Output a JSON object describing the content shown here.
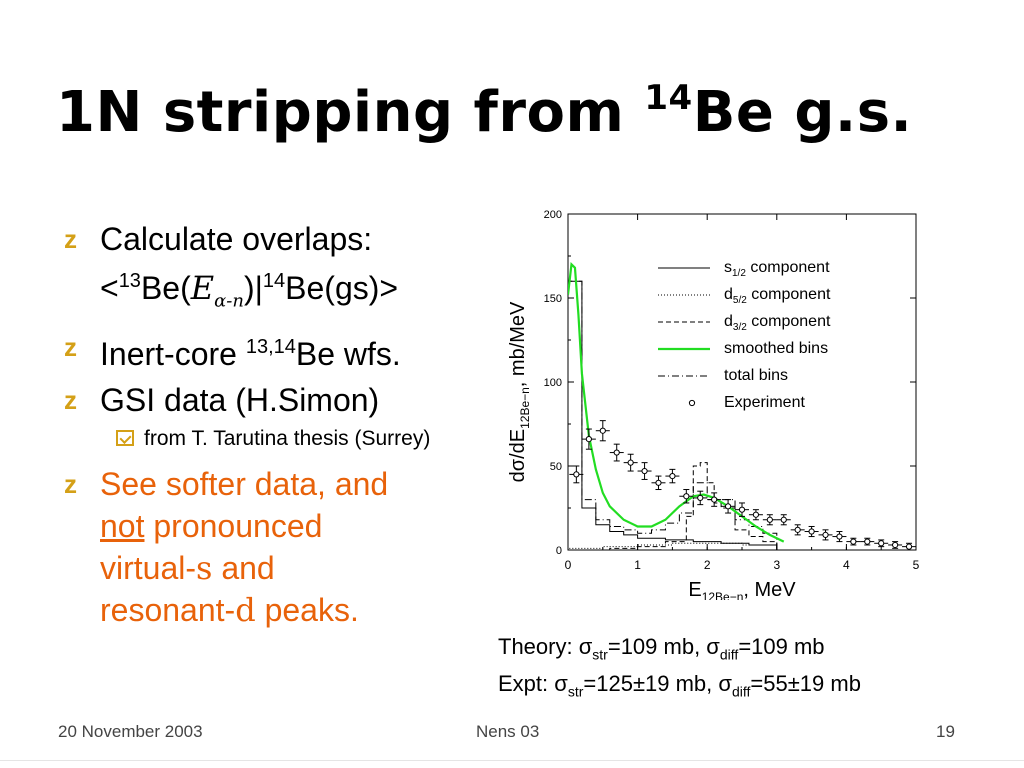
{
  "slide": {
    "title_main": "1N stripping from ",
    "title_sup": "14",
    "title_end": "Be g.s.",
    "bullets": {
      "b1_line1": "Calculate overlaps:",
      "b1_lt": "<",
      "b1_sup13": "13",
      "b1_be": "Be(",
      "b1_E": "E",
      "b1_sub": "α-n",
      "b1_mid": ")|",
      "b1_sup14": "14",
      "b1_end": "Be(gs)>",
      "b2_text": "Inert-core ",
      "b2_sup": "13,14",
      "b2_end": "Be wfs.",
      "b3_text": "GSI data (H.Simon)",
      "sub_text": "from T. Tarutina thesis (Surrey)",
      "b4_a": "See softer data, and",
      "b4_not": "not",
      "b4_b": " pronounced",
      "b4_c": "virtual-",
      "b4_s": "s",
      "b4_d": " and",
      "b4_e": "resonant-",
      "b4_dd": "d",
      "b4_f": " peaks."
    },
    "theory": {
      "t1_a": "Theory: σ",
      "t1_sub1": "str",
      "t1_b": "=109 mb, σ",
      "t1_sub2": "diff",
      "t1_c": "=109 mb",
      "t2_a": "Expt:  σ",
      "t2_sub1": "str",
      "t2_b": "=125±19 mb, σ",
      "t2_sub2": "diff",
      "t2_c": "=55±19 mb"
    },
    "footer": {
      "date": "20 November 2003",
      "center": "Nens 03",
      "page": "19"
    },
    "colors": {
      "orange": "#e8620a",
      "bullet": "#d4a017",
      "smoothed": "#22dd22"
    }
  },
  "chart_data": {
    "type": "line",
    "xlabel_main": "E",
    "xlabel_sub": "12Be−n",
    "xlabel_unit": ", MeV",
    "ylabel_main": "dσ/dE",
    "ylabel_sub": "12Be−n",
    "ylabel_unit": ", mb/MeV",
    "xlim": [
      0,
      5
    ],
    "ylim": [
      0,
      200
    ],
    "xticks": [
      "0",
      "1",
      "2",
      "3",
      "4",
      "5"
    ],
    "yticks": [
      "0",
      "50",
      "100",
      "150",
      "200"
    ],
    "legend_position": "top-right",
    "legend": [
      {
        "label": "s",
        "sub": "1/2",
        "rest": " component",
        "style": "solid"
      },
      {
        "label": "d",
        "sub": "5/2",
        "rest": " component",
        "style": "dotted"
      },
      {
        "label": "d",
        "sub": "3/2",
        "rest": " component",
        "style": "dashed"
      },
      {
        "label": "smoothed bins",
        "sub": "",
        "rest": "",
        "style": "green"
      },
      {
        "label": "total bins",
        "sub": "",
        "rest": "",
        "style": "dashdot"
      },
      {
        "label": "Experiment",
        "sub": "",
        "rest": "",
        "style": "marker"
      }
    ],
    "series": [
      {
        "name": "Experiment",
        "x": [
          0.12,
          0.3,
          0.5,
          0.7,
          0.9,
          1.1,
          1.3,
          1.5,
          1.7,
          1.9,
          2.1,
          2.3,
          2.5,
          2.7,
          2.9,
          3.1,
          3.3,
          3.5,
          3.7,
          3.9,
          4.1,
          4.3,
          4.5,
          4.7,
          4.9
        ],
        "y": [
          45,
          66,
          71,
          58,
          52,
          47,
          40,
          44,
          32,
          31,
          30,
          26,
          24,
          21,
          18,
          18,
          12,
          11,
          9,
          8,
          5,
          5,
          4,
          3,
          2
        ],
        "err": [
          5,
          6,
          6,
          5,
          5,
          5,
          4,
          4,
          4,
          4,
          4,
          4,
          4,
          3,
          3,
          3,
          3,
          3,
          3,
          3,
          2,
          2,
          2,
          2,
          2
        ]
      },
      {
        "name": "smoothed bins",
        "x": [
          0.0,
          0.05,
          0.1,
          0.15,
          0.2,
          0.3,
          0.4,
          0.5,
          0.6,
          0.8,
          1.0,
          1.2,
          1.4,
          1.6,
          1.8,
          1.95,
          2.1,
          2.3,
          2.5,
          2.7,
          2.9,
          3.1
        ],
        "y": [
          152,
          170,
          168,
          140,
          105,
          68,
          48,
          34,
          26,
          18,
          14,
          14,
          18,
          26,
          32,
          33,
          31,
          26,
          20,
          14,
          9,
          5
        ]
      },
      {
        "name": "total bins",
        "x": [
          0.0,
          0.1,
          0.2,
          0.4,
          0.6,
          0.8,
          1.0,
          1.2,
          1.4,
          1.6,
          1.8,
          2.0,
          2.2,
          2.4,
          2.6,
          2.8,
          3.0
        ],
        "y": [
          160,
          160,
          30,
          18,
          14,
          12,
          10,
          12,
          16,
          22,
          40,
          30,
          30,
          18,
          14,
          10,
          6
        ]
      },
      {
        "name": "s1/2 component",
        "x": [
          0.0,
          0.1,
          0.2,
          0.4,
          0.6,
          0.8,
          1.0,
          1.4,
          1.8,
          2.2,
          2.6,
          3.0
        ],
        "y": [
          160,
          160,
          25,
          15,
          11,
          9,
          7,
          6,
          5,
          4,
          3,
          2
        ]
      },
      {
        "name": "d5/2 component",
        "x": [
          0.0,
          0.5,
          1.0,
          1.5,
          2.0,
          2.5,
          3.0
        ],
        "y": [
          1,
          2,
          3,
          4,
          4,
          3,
          2
        ]
      },
      {
        "name": "d3/2 component",
        "x": [
          0.0,
          0.6,
          1.0,
          1.4,
          1.7,
          1.8,
          1.9,
          2.0,
          2.1,
          2.2,
          2.4,
          2.6,
          2.8,
          3.0
        ],
        "y": [
          0,
          1,
          2,
          5,
          20,
          50,
          52,
          40,
          28,
          25,
          12,
          8,
          5,
          3
        ]
      }
    ]
  }
}
